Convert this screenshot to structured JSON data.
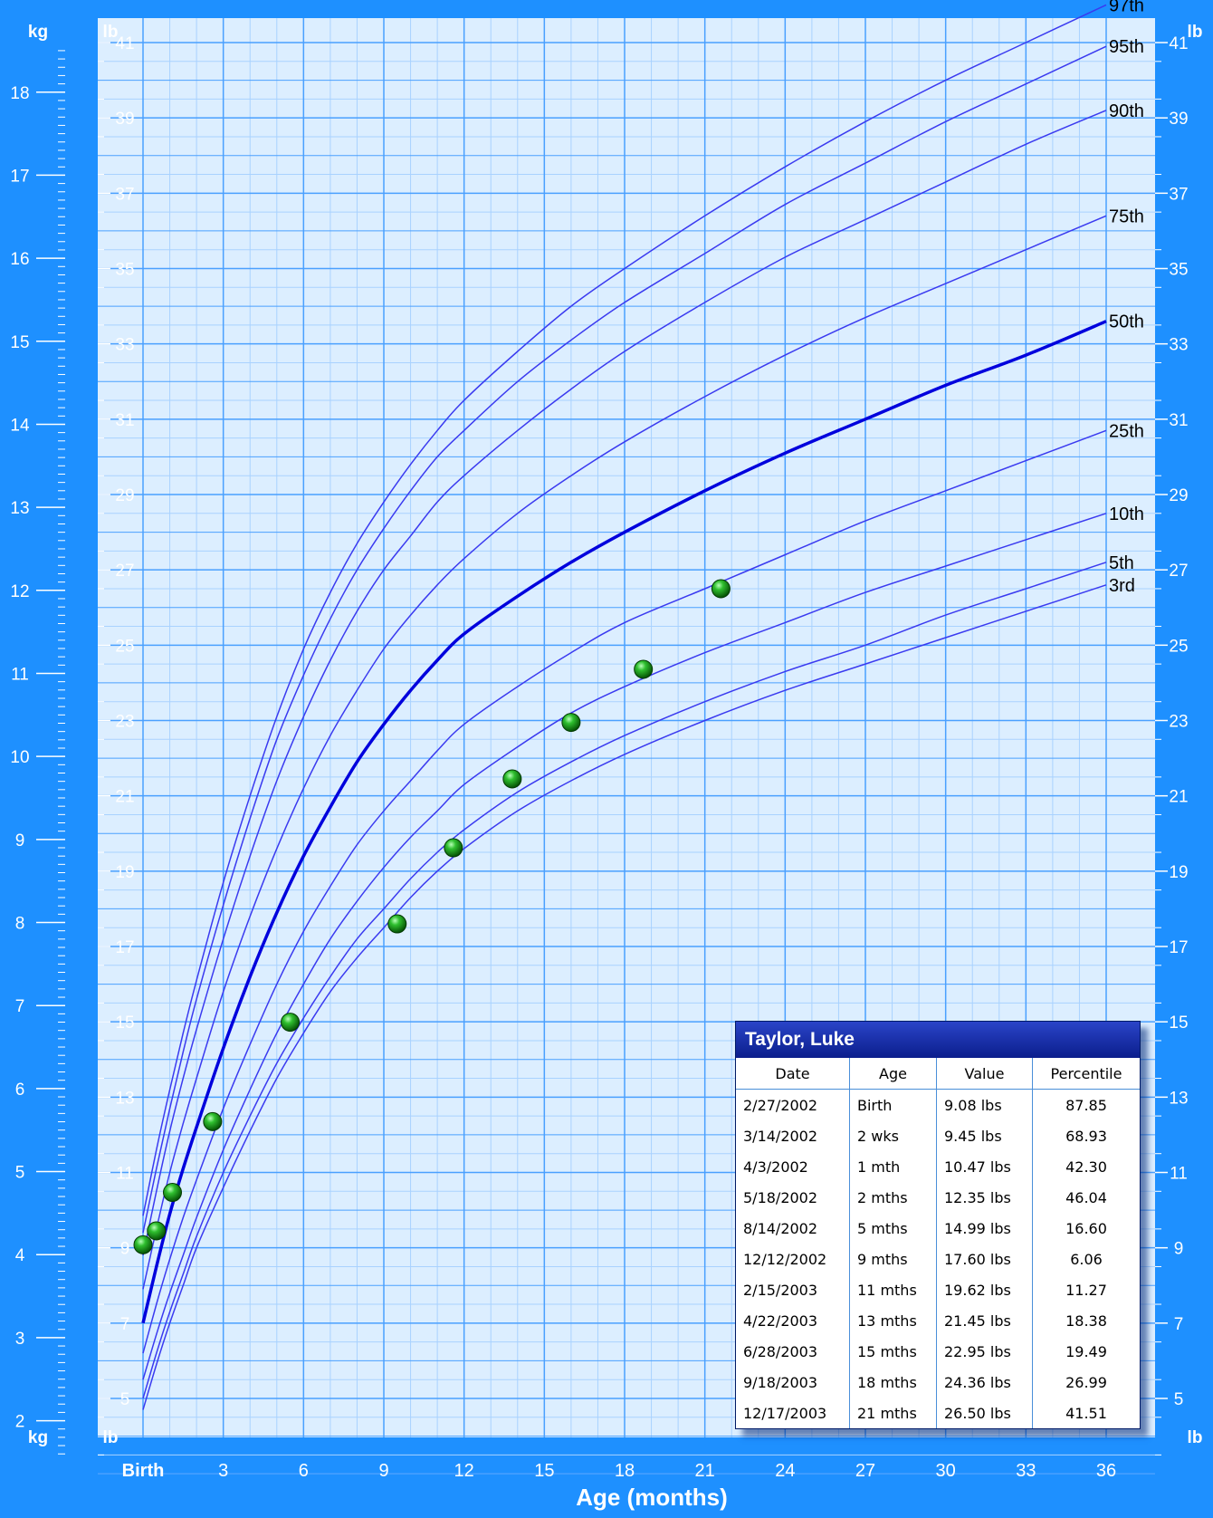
{
  "chart_data": {
    "type": "line",
    "title": "",
    "xlabel": "Age (months)",
    "ylabel_left": "kg",
    "ylabel_left_alt": "lb",
    "ylabel_right": "lb",
    "xlim": [
      0,
      36
    ],
    "ylim_lb": [
      3.3,
      41
    ],
    "ylim_kg": [
      1.5,
      18.6
    ],
    "x_ticks": [
      {
        "value": 0,
        "label": "Birth"
      },
      {
        "value": 3,
        "label": "3"
      },
      {
        "value": 6,
        "label": "6"
      },
      {
        "value": 9,
        "label": "9"
      },
      {
        "value": 12,
        "label": "12"
      },
      {
        "value": 15,
        "label": "15"
      },
      {
        "value": 18,
        "label": "18"
      },
      {
        "value": 21,
        "label": "21"
      },
      {
        "value": 24,
        "label": "24"
      },
      {
        "value": 27,
        "label": "27"
      },
      {
        "value": 30,
        "label": "30"
      },
      {
        "value": 33,
        "label": "33"
      },
      {
        "value": 36,
        "label": "36"
      }
    ],
    "lb_ticks": [
      "5",
      "7",
      "9",
      "11",
      "13",
      "15",
      "17",
      "19",
      "21",
      "23",
      "25",
      "27",
      "29",
      "31",
      "33",
      "35",
      "37",
      "39",
      "41"
    ],
    "kg_ticks": [
      "2",
      "3",
      "4",
      "5",
      "6",
      "7",
      "8",
      "9",
      "10",
      "11",
      "12",
      "13",
      "14",
      "15",
      "16",
      "17",
      "18"
    ],
    "grid": true,
    "percentile_x": [
      0,
      0.5,
      1,
      1.5,
      2,
      3,
      4,
      5,
      6,
      7,
      8,
      9,
      10,
      11,
      12,
      14,
      16,
      18,
      21,
      24,
      27,
      30,
      33,
      36
    ],
    "series": [
      {
        "name": "97th",
        "emphasis": false,
        "values": [
          9.85,
          11.6,
          13.2,
          14.7,
          16.1,
          18.7,
          21.0,
          23.1,
          24.9,
          26.4,
          27.7,
          28.8,
          29.8,
          30.7,
          31.5,
          32.8,
          34.0,
          35.0,
          36.4,
          37.7,
          38.9,
          40.0,
          41.0,
          42.0
        ]
      },
      {
        "name": "95th",
        "emphasis": false,
        "values": [
          9.4,
          11.1,
          12.7,
          14.2,
          15.6,
          18.1,
          20.4,
          22.5,
          24.2,
          25.7,
          27.0,
          28.1,
          29.1,
          30.0,
          30.7,
          32.0,
          33.1,
          34.1,
          35.4,
          36.7,
          37.8,
          38.9,
          39.9,
          40.9
        ]
      },
      {
        "name": "90th",
        "emphasis": false,
        "values": [
          8.8,
          10.5,
          12.1,
          13.5,
          14.8,
          17.2,
          19.4,
          21.4,
          23.1,
          24.6,
          25.9,
          27.0,
          27.9,
          28.8,
          29.5,
          30.7,
          31.8,
          32.8,
          34.1,
          35.3,
          36.3,
          37.3,
          38.3,
          39.2
        ]
      },
      {
        "name": "75th",
        "emphasis": false,
        "values": [
          7.9,
          9.5,
          11.0,
          12.3,
          13.5,
          15.8,
          17.8,
          19.6,
          21.2,
          22.6,
          23.8,
          24.9,
          25.8,
          26.6,
          27.3,
          28.5,
          29.5,
          30.4,
          31.6,
          32.7,
          33.7,
          34.6,
          35.5,
          36.4
        ]
      },
      {
        "name": "50th",
        "emphasis": true,
        "values": [
          7.0,
          8.5,
          9.9,
          11.1,
          12.2,
          14.3,
          16.2,
          17.9,
          19.4,
          20.7,
          21.9,
          22.9,
          23.8,
          24.6,
          25.3,
          26.3,
          27.2,
          28.0,
          29.1,
          30.1,
          31.0,
          31.9,
          32.7,
          33.6
        ]
      },
      {
        "name": "25th",
        "emphasis": false,
        "values": [
          6.2,
          7.5,
          8.7,
          9.8,
          10.8,
          12.7,
          14.4,
          16.0,
          17.4,
          18.6,
          19.7,
          20.6,
          21.4,
          22.2,
          22.9,
          23.9,
          24.8,
          25.6,
          26.5,
          27.4,
          28.3,
          29.1,
          29.9,
          30.7
        ]
      },
      {
        "name": "10th",
        "emphasis": false,
        "values": [
          5.5,
          6.7,
          7.8,
          8.8,
          9.8,
          11.6,
          13.2,
          14.7,
          16.0,
          17.2,
          18.2,
          19.1,
          19.9,
          20.6,
          21.3,
          22.3,
          23.2,
          23.9,
          24.8,
          25.6,
          26.4,
          27.1,
          27.8,
          28.5
        ]
      },
      {
        "name": "5th",
        "emphasis": false,
        "values": [
          5.0,
          6.2,
          7.3,
          8.3,
          9.3,
          11.0,
          12.5,
          13.9,
          15.1,
          16.2,
          17.2,
          18.0,
          18.8,
          19.5,
          20.1,
          21.1,
          21.9,
          22.6,
          23.5,
          24.3,
          25.0,
          25.8,
          26.5,
          27.2
        ]
      },
      {
        "name": "3rd",
        "emphasis": false,
        "values": [
          4.7,
          5.9,
          7.0,
          8.0,
          9.0,
          10.6,
          12.1,
          13.5,
          14.7,
          15.8,
          16.7,
          17.5,
          18.3,
          19.0,
          19.6,
          20.6,
          21.4,
          22.1,
          23.0,
          23.8,
          24.5,
          25.2,
          25.9,
          26.6
        ]
      }
    ],
    "measurements": [
      {
        "x": 0,
        "y": 9.08
      },
      {
        "x": 0.5,
        "y": 9.45
      },
      {
        "x": 1.1,
        "y": 10.47
      },
      {
        "x": 2.6,
        "y": 12.35
      },
      {
        "x": 5.5,
        "y": 14.99
      },
      {
        "x": 9.5,
        "y": 17.6
      },
      {
        "x": 11.6,
        "y": 19.62
      },
      {
        "x": 13.8,
        "y": 21.45
      },
      {
        "x": 16.0,
        "y": 22.95
      },
      {
        "x": 18.7,
        "y": 24.36
      },
      {
        "x": 21.6,
        "y": 26.5
      }
    ]
  },
  "colors": {
    "frame": "#1e90ff",
    "plot_bg": "#dceeff",
    "grid_major": "#4aa0ff",
    "grid_minor": "#a9d2ff",
    "percentile_line": "#3a3af0",
    "median_line": "#0000dd",
    "point": "#1a8c1a"
  },
  "table": {
    "title": "Taylor, Luke",
    "columns": [
      "Date",
      "Age",
      "Value",
      "Percentile"
    ],
    "rows": [
      [
        "2/27/2002",
        "Birth",
        "9.08 lbs",
        "87.85"
      ],
      [
        "3/14/2002",
        "2 wks",
        "9.45 lbs",
        "68.93"
      ],
      [
        "4/3/2002",
        "1 mth",
        "10.47 lbs",
        "42.30"
      ],
      [
        "5/18/2002",
        "2 mths",
        "12.35 lbs",
        "46.04"
      ],
      [
        "8/14/2002",
        "5 mths",
        "14.99 lbs",
        "16.60"
      ],
      [
        "12/12/2002",
        "9 mths",
        "17.60 lbs",
        "6.06"
      ],
      [
        "2/15/2003",
        "11 mths",
        "19.62 lbs",
        "11.27"
      ],
      [
        "4/22/2003",
        "13 mths",
        "21.45 lbs",
        "18.38"
      ],
      [
        "6/28/2003",
        "15 mths",
        "22.95 lbs",
        "19.49"
      ],
      [
        "9/18/2003",
        "18 mths",
        "24.36 lbs",
        "26.99"
      ],
      [
        "12/17/2003",
        "21 mths",
        "26.50 lbs",
        "41.51"
      ]
    ]
  }
}
